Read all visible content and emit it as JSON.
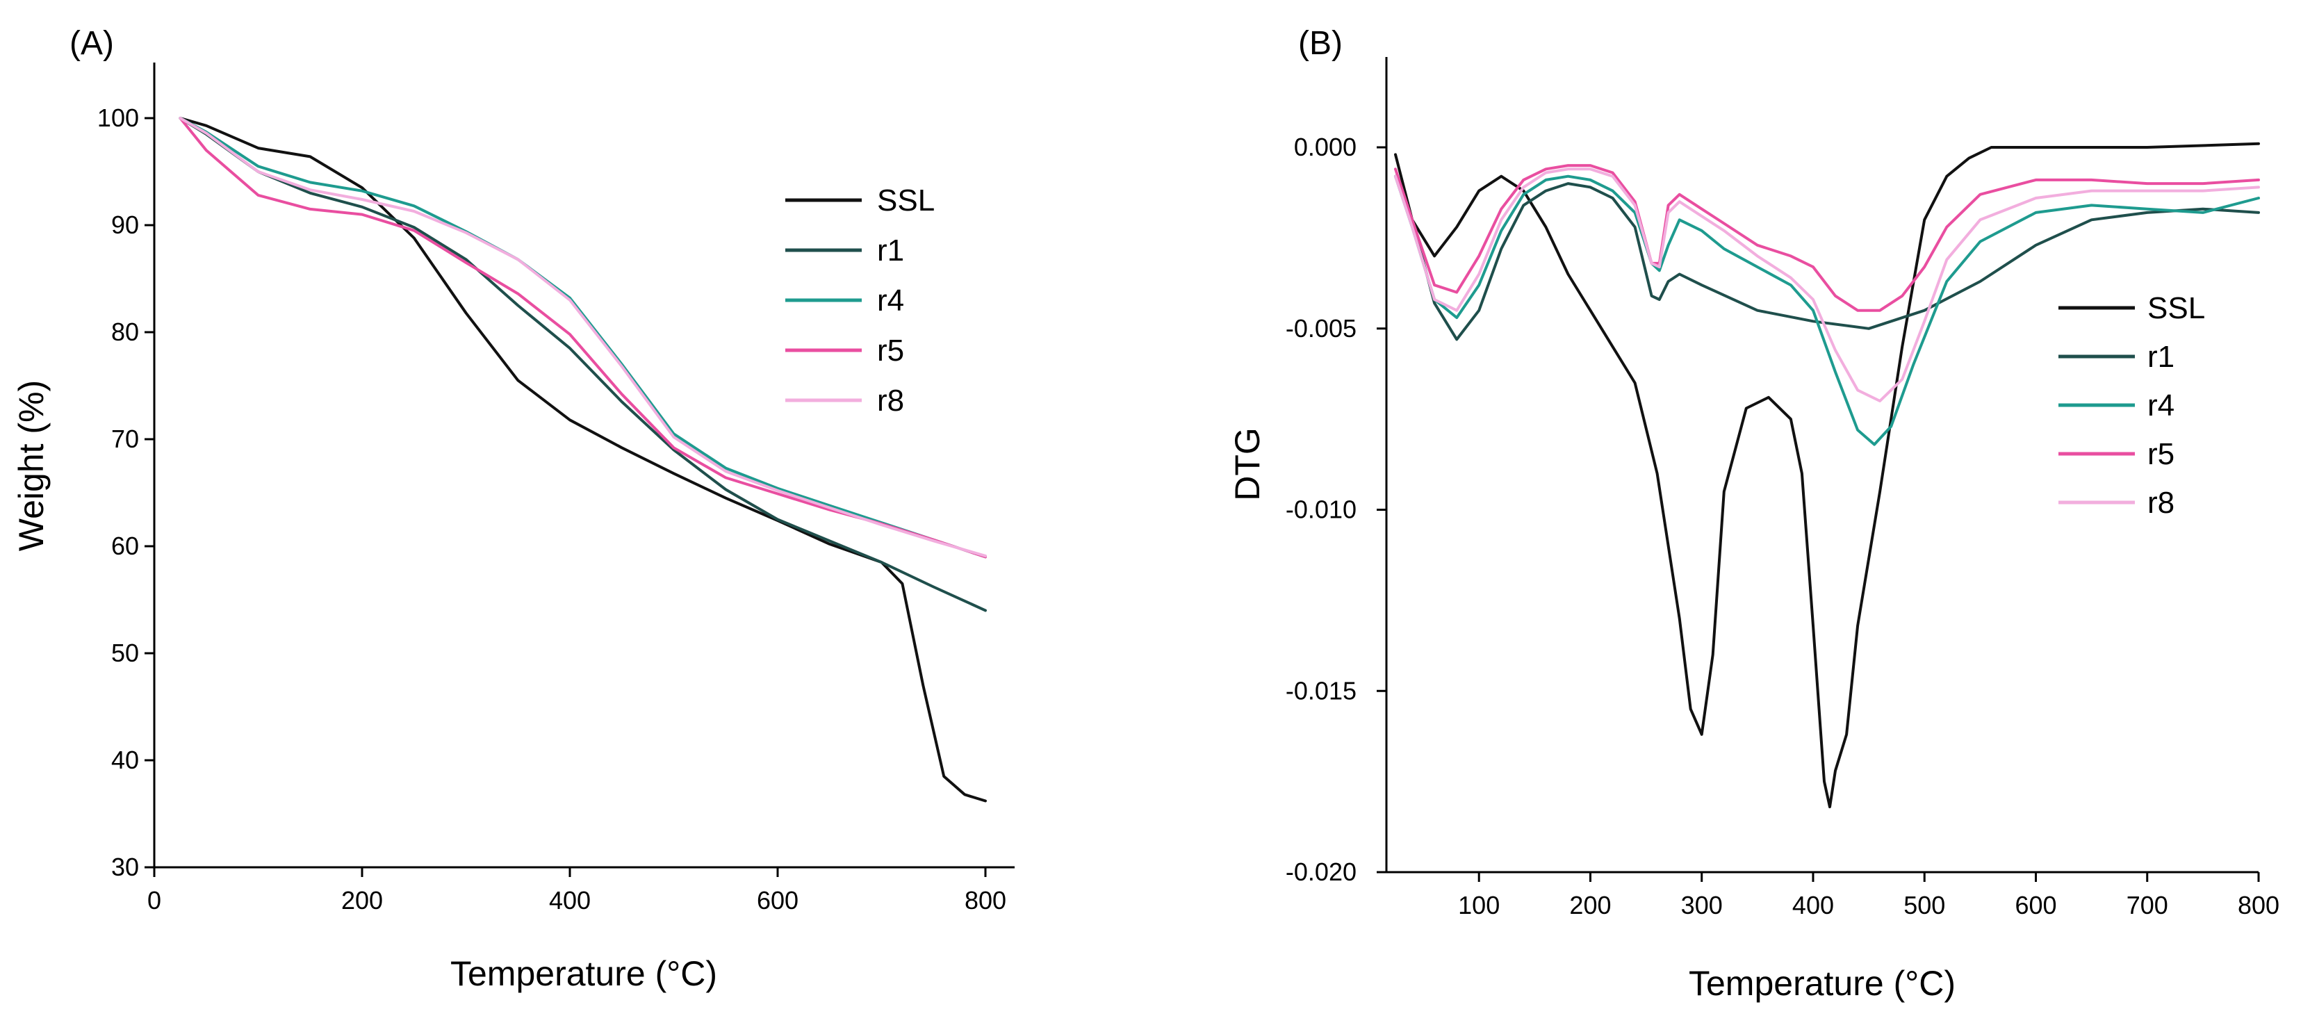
{
  "chart_data": [
    {
      "panel": "(A)",
      "type": "line",
      "title": "",
      "xlabel": "Temperature (°C)",
      "ylabel": "Weight (%)",
      "xlim": [
        0,
        830
      ],
      "ylim": [
        30,
        105
      ],
      "xticks": [
        0,
        200,
        400,
        600,
        800
      ],
      "yticks": [
        30,
        40,
        50,
        60,
        70,
        80,
        90,
        100
      ],
      "xtick_labels": [
        "0",
        "200",
        "400",
        "600",
        "800"
      ],
      "ytick_labels": [
        "30",
        "40",
        "50",
        "60",
        "70",
        "80",
        "90",
        "100"
      ],
      "legend": [
        "SSL",
        "r1",
        "r4",
        "r5",
        "r8"
      ],
      "legend_position": "top-right",
      "series": [
        {
          "name": "SSL",
          "color": "#111111",
          "x": [
            25,
            50,
            100,
            150,
            200,
            250,
            300,
            350,
            400,
            450,
            500,
            550,
            600,
            650,
            700,
            720,
            740,
            760,
            780,
            800
          ],
          "y": [
            100,
            99.3,
            97.2,
            96.4,
            93.5,
            88.8,
            81.8,
            75.5,
            71.8,
            69.2,
            66.8,
            64.5,
            62.4,
            60.2,
            58.5,
            56.5,
            47,
            38.5,
            36.8,
            36.2
          ]
        },
        {
          "name": "r1",
          "color": "#1f4f4c",
          "x": [
            25,
            50,
            100,
            150,
            200,
            250,
            300,
            350,
            400,
            450,
            500,
            550,
            600,
            650,
            700,
            750,
            800
          ],
          "y": [
            100,
            98.5,
            95,
            93,
            91.7,
            89.8,
            86.8,
            82.5,
            78.5,
            73.5,
            69,
            65.3,
            62.5,
            60.5,
            58.5,
            56.2,
            54
          ]
        },
        {
          "name": "r4",
          "color": "#1e9b8f",
          "x": [
            25,
            50,
            100,
            150,
            200,
            250,
            300,
            350,
            400,
            450,
            500,
            550,
            600,
            650,
            700,
            750,
            800
          ],
          "y": [
            100,
            98.7,
            95.5,
            94,
            93.2,
            91.8,
            89.4,
            86.8,
            83.2,
            77,
            70.5,
            67.3,
            65.4,
            63.8,
            62.2,
            60.6,
            59
          ]
        },
        {
          "name": "r5",
          "color": "#e94ea0",
          "x": [
            25,
            50,
            100,
            150,
            200,
            250,
            300,
            350,
            400,
            450,
            500,
            550,
            600,
            650,
            700,
            750,
            800
          ],
          "y": [
            100,
            97,
            92.8,
            91.5,
            91,
            89.5,
            86.5,
            83.6,
            79.8,
            74.2,
            69.2,
            66.4,
            64.9,
            63.4,
            62.1,
            60.6,
            59
          ]
        },
        {
          "name": "r8",
          "color": "#f2aede",
          "x": [
            25,
            50,
            100,
            150,
            200,
            250,
            300,
            350,
            400,
            450,
            500,
            550,
            600,
            650,
            700,
            750,
            800
          ],
          "y": [
            100,
            98.6,
            95,
            93.3,
            92.4,
            91.3,
            89.3,
            86.8,
            83,
            76.8,
            70.2,
            67,
            65.2,
            63.6,
            62,
            60.5,
            59.1
          ]
        }
      ]
    },
    {
      "panel": "(B)",
      "type": "line",
      "title": "",
      "xlabel": "Temperature (°C)",
      "ylabel": "DTG",
      "xlim": [
        20,
        800
      ],
      "ylim": [
        -0.02,
        0.0025
      ],
      "xticks": [
        100,
        200,
        300,
        400,
        500,
        600,
        700,
        800
      ],
      "yticks": [
        0.0,
        -0.005,
        -0.01,
        -0.015,
        -0.02
      ],
      "xtick_labels": [
        "100",
        "200",
        "300",
        "400",
        "500",
        "600",
        "700",
        "800"
      ],
      "ytick_labels": [
        "0.000",
        "-0.005",
        "-0.010",
        "-0.015",
        "-0.020"
      ],
      "legend": [
        "SSL",
        "r1",
        "r4",
        "r5",
        "r8"
      ],
      "legend_position": "right",
      "series": [
        {
          "name": "SSL",
          "color": "#111111",
          "x": [
            25,
            40,
            60,
            80,
            100,
            120,
            140,
            160,
            180,
            200,
            220,
            240,
            260,
            280,
            290,
            300,
            310,
            320,
            340,
            360,
            380,
            390,
            400,
            410,
            415,
            420,
            430,
            440,
            460,
            480,
            500,
            520,
            540,
            560,
            600,
            700,
            800
          ],
          "y": [
            -0.0002,
            -0.002,
            -0.003,
            -0.0022,
            -0.0012,
            -0.0008,
            -0.0012,
            -0.0022,
            -0.0035,
            -0.0045,
            -0.0055,
            -0.0065,
            -0.009,
            -0.013,
            -0.0155,
            -0.0162,
            -0.014,
            -0.0095,
            -0.0072,
            -0.0069,
            -0.0075,
            -0.009,
            -0.0132,
            -0.0175,
            -0.0182,
            -0.0172,
            -0.0162,
            -0.0132,
            -0.0095,
            -0.0055,
            -0.002,
            -0.0008,
            -0.0003,
            0.0,
            0.0,
            0.0,
            0.0001
          ]
        },
        {
          "name": "r1",
          "color": "#1f4f4c",
          "x": [
            25,
            40,
            60,
            80,
            100,
            120,
            140,
            160,
            180,
            200,
            220,
            240,
            255,
            262,
            270,
            280,
            300,
            350,
            400,
            450,
            500,
            550,
            600,
            650,
            700,
            750,
            800
          ],
          "y": [
            -0.0008,
            -0.002,
            -0.0043,
            -0.0053,
            -0.0045,
            -0.0028,
            -0.0016,
            -0.0012,
            -0.001,
            -0.0011,
            -0.0014,
            -0.0022,
            -0.0041,
            -0.0042,
            -0.0037,
            -0.0035,
            -0.0038,
            -0.0045,
            -0.0048,
            -0.005,
            -0.0045,
            -0.0037,
            -0.0027,
            -0.002,
            -0.0018,
            -0.0017,
            -0.0018
          ]
        },
        {
          "name": "r4",
          "color": "#1e9b8f",
          "x": [
            25,
            40,
            60,
            80,
            100,
            120,
            140,
            160,
            180,
            200,
            220,
            240,
            255,
            262,
            270,
            280,
            300,
            320,
            350,
            380,
            400,
            420,
            440,
            455,
            470,
            490,
            520,
            550,
            600,
            650,
            700,
            750,
            800
          ],
          "y": [
            -0.0008,
            -0.0022,
            -0.0042,
            -0.0047,
            -0.0038,
            -0.0023,
            -0.0013,
            -0.0009,
            -0.0008,
            -0.0009,
            -0.0012,
            -0.0018,
            -0.0032,
            -0.0034,
            -0.0027,
            -0.002,
            -0.0023,
            -0.0028,
            -0.0033,
            -0.0038,
            -0.0045,
            -0.0062,
            -0.0078,
            -0.0082,
            -0.0077,
            -0.006,
            -0.0037,
            -0.0026,
            -0.0018,
            -0.0016,
            -0.0017,
            -0.0018,
            -0.0014
          ]
        },
        {
          "name": "r5",
          "color": "#e94ea0",
          "x": [
            25,
            40,
            60,
            80,
            100,
            120,
            140,
            160,
            180,
            200,
            220,
            240,
            255,
            262,
            270,
            280,
            300,
            320,
            350,
            380,
            400,
            420,
            440,
            460,
            480,
            500,
            520,
            550,
            600,
            650,
            700,
            750,
            800
          ],
          "y": [
            -0.0006,
            -0.002,
            -0.0038,
            -0.004,
            -0.003,
            -0.0017,
            -0.0009,
            -0.0006,
            -0.0005,
            -0.0005,
            -0.0007,
            -0.0015,
            -0.0032,
            -0.0032,
            -0.0016,
            -0.0013,
            -0.0017,
            -0.0021,
            -0.0027,
            -0.003,
            -0.0033,
            -0.0041,
            -0.0045,
            -0.0045,
            -0.0041,
            -0.0033,
            -0.0022,
            -0.0013,
            -0.0009,
            -0.0009,
            -0.001,
            -0.001,
            -0.0009
          ]
        },
        {
          "name": "r8",
          "color": "#f2aede",
          "x": [
            25,
            40,
            60,
            80,
            100,
            120,
            140,
            160,
            180,
            200,
            220,
            240,
            255,
            262,
            270,
            280,
            300,
            320,
            350,
            380,
            400,
            420,
            440,
            460,
            480,
            500,
            520,
            550,
            600,
            650,
            700,
            750,
            800
          ],
          "y": [
            -0.0008,
            -0.0022,
            -0.0042,
            -0.0045,
            -0.0035,
            -0.002,
            -0.0011,
            -0.0007,
            -0.0006,
            -0.0006,
            -0.0008,
            -0.0016,
            -0.0032,
            -0.0033,
            -0.0018,
            -0.0015,
            -0.0019,
            -0.0023,
            -0.003,
            -0.0036,
            -0.0042,
            -0.0056,
            -0.0067,
            -0.007,
            -0.0064,
            -0.0048,
            -0.0031,
            -0.002,
            -0.0014,
            -0.0012,
            -0.0012,
            -0.0012,
            -0.0011
          ]
        }
      ]
    }
  ]
}
